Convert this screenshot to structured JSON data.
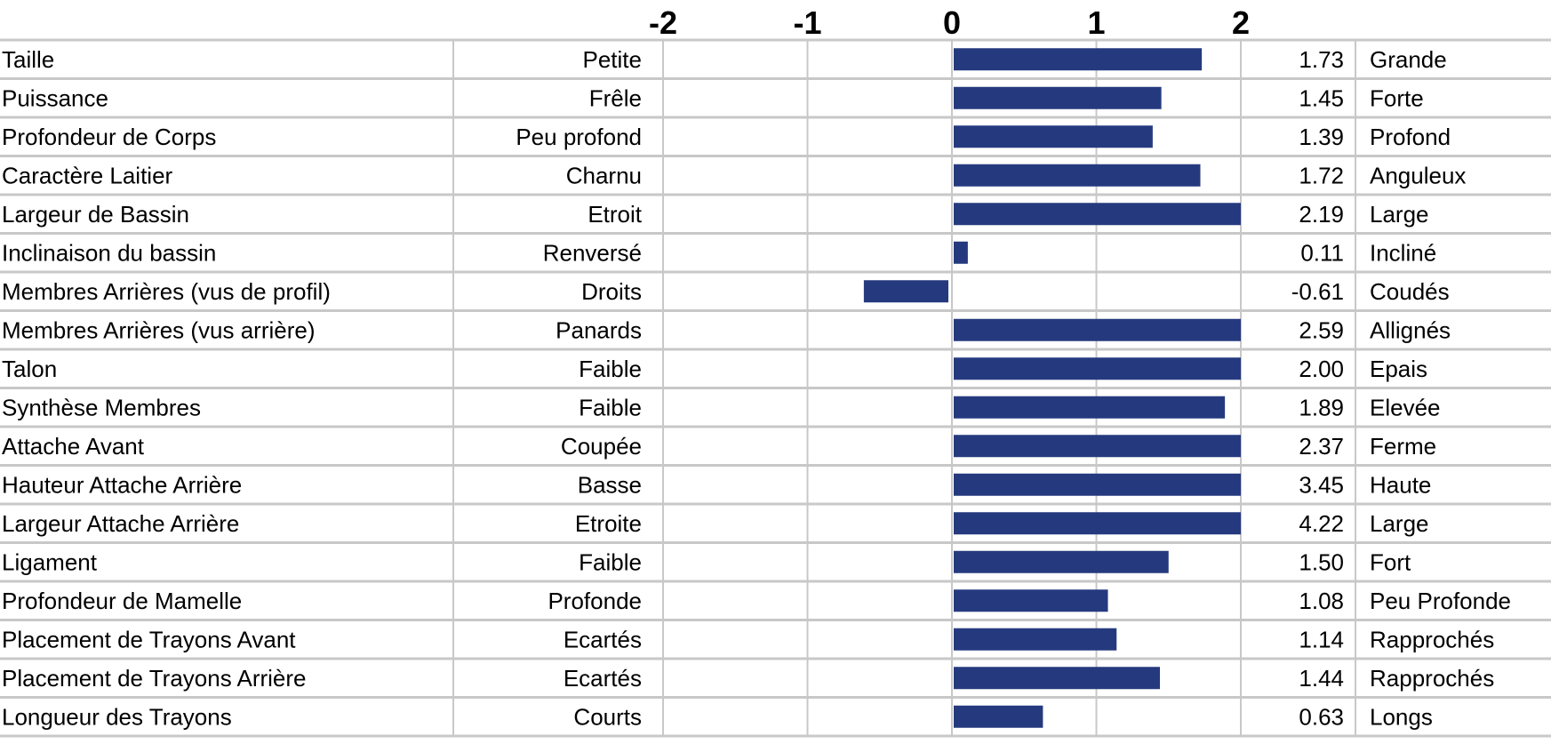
{
  "chart_data": {
    "type": "bar",
    "orientation": "horizontal",
    "title": "",
    "xlabel": "",
    "ylabel": "",
    "xlim": [
      -2,
      2
    ],
    "x_ticks": [
      "-2",
      "-1",
      "0",
      "1",
      "2"
    ],
    "grid": true,
    "bar_color": "#253a7e",
    "categories": [
      "Taille",
      "Puissance",
      "Profondeur de Corps",
      "Caractère Laitier",
      "Largeur de Bassin",
      "Inclinaison du bassin",
      "Membres Arrières (vus de profil)",
      "Membres Arrières (vus arrière)",
      "Talon",
      "Synthèse Membres",
      "Attache Avant",
      "Hauteur Attache Arrière",
      "Largeur Attache Arrière",
      "Ligament",
      "Profondeur de Mamelle",
      "Placement de Trayons Avant",
      "Placement de Trayons Arrière",
      "Longueur des Trayons"
    ],
    "low_labels": [
      "Petite",
      "Frêle",
      "Peu profond",
      "Charnu",
      "Etroit",
      "Renversé",
      "Droits",
      "Panards",
      "Faible",
      "Faible",
      "Coupée",
      "Basse",
      "Etroite",
      "Faible",
      "Profonde",
      "Ecartés",
      "Ecartés",
      "Courts"
    ],
    "high_labels": [
      "Grande",
      "Forte",
      "Profond",
      "Anguleux",
      "Large",
      "Incliné",
      "Coudés",
      "Allignés",
      "Epais",
      "Elevée",
      "Ferme",
      "Haute",
      "Large",
      "Fort",
      "Peu Profonde",
      "Rapprochés",
      "Rapprochés",
      "Longs"
    ],
    "value_labels": [
      "1.73",
      "1.45",
      "1.39",
      "1.72",
      "2.19",
      "0.11",
      "-0.61",
      "2.59",
      "2.00",
      "1.89",
      "2.37",
      "3.45",
      "4.22",
      "1.50",
      "1.08",
      "1.14",
      "1.44",
      "0.63"
    ],
    "values": [
      1.73,
      1.45,
      1.39,
      1.72,
      2.19,
      0.11,
      -0.61,
      2.59,
      2.0,
      1.89,
      2.37,
      3.45,
      4.22,
      1.5,
      1.08,
      1.14,
      1.44,
      0.63
    ]
  }
}
